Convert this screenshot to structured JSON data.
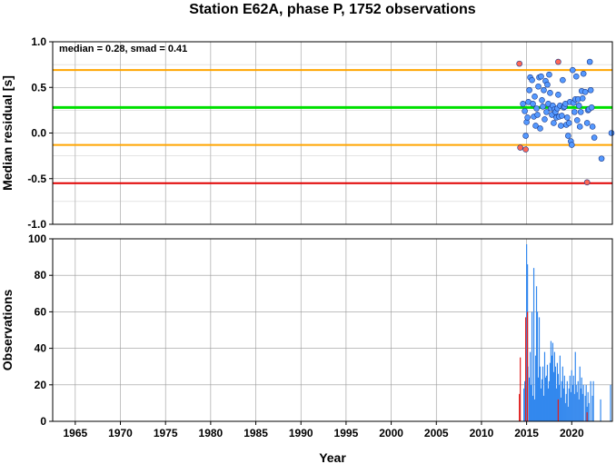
{
  "title": "Station E62A, phase P, 1752 observations",
  "stats_text": "median = 0.28, smad = 0.41",
  "chart_data": [
    {
      "type": "scatter",
      "ylabel": "Median residual [s]",
      "xlim": [
        1962.5,
        2024.5
      ],
      "ylim": [
        -1.0,
        1.0
      ],
      "yticks": [
        "1.0",
        "0.5",
        "0.0",
        "-0.5",
        "-1.0"
      ],
      "ytick_values": [
        1.0,
        0.5,
        0.0,
        -0.5,
        -1.0
      ],
      "grid": true,
      "hlines": [
        {
          "y": 0.69,
          "color": "#ffa500"
        },
        {
          "y": 0.28,
          "color": "#00e000"
        },
        {
          "y": -0.13,
          "color": "#ffa500"
        },
        {
          "y": -0.55,
          "color": "#e00000"
        }
      ],
      "series": [
        {
          "color": "#5599ff",
          "points": [
            [
              2014.6,
              0.32
            ],
            [
              2014.8,
              0.24
            ],
            [
              2014.9,
              -0.03
            ],
            [
              2015.0,
              0.12
            ],
            [
              2015.1,
              0.17
            ],
            [
              2015.2,
              0.34
            ],
            [
              2015.3,
              0.47
            ],
            [
              2015.4,
              0.61
            ],
            [
              2015.6,
              0.58
            ],
            [
              2015.7,
              0.32
            ],
            [
              2015.8,
              0.18
            ],
            [
              2015.9,
              0.4
            ],
            [
              2016.0,
              0.08
            ],
            [
              2016.1,
              0.27
            ],
            [
              2016.2,
              0.2
            ],
            [
              2016.3,
              0.51
            ],
            [
              2016.4,
              0.61
            ],
            [
              2016.5,
              0.05
            ],
            [
              2016.6,
              0.62
            ],
            [
              2016.7,
              0.36
            ],
            [
              2016.8,
              0.29
            ],
            [
              2016.9,
              0.47
            ],
            [
              2017.0,
              0.15
            ],
            [
              2017.1,
              0.57
            ],
            [
              2017.2,
              0.23
            ],
            [
              2017.3,
              0.53
            ],
            [
              2017.4,
              0.32
            ],
            [
              2017.5,
              0.64
            ],
            [
              2017.6,
              0.44
            ],
            [
              2017.7,
              0.27
            ],
            [
              2017.8,
              0.2
            ],
            [
              2017.9,
              0.3
            ],
            [
              2018.0,
              0.11
            ],
            [
              2018.1,
              0.26
            ],
            [
              2018.2,
              0.23
            ],
            [
              2018.3,
              0.17
            ],
            [
              2018.4,
              0.27
            ],
            [
              2018.5,
              0.42
            ],
            [
              2018.6,
              0.18
            ],
            [
              2018.7,
              0.3
            ],
            [
              2018.8,
              0.08
            ],
            [
              2018.9,
              0.19
            ],
            [
              2019.0,
              0.58
            ],
            [
              2019.1,
              0.28
            ],
            [
              2019.2,
              0.29
            ],
            [
              2019.3,
              0.32
            ],
            [
              2019.4,
              0.09
            ],
            [
              2019.5,
              0.17
            ],
            [
              2019.6,
              -0.03
            ],
            [
              2019.7,
              0.11
            ],
            [
              2019.8,
              0.34
            ],
            [
              2019.9,
              -0.09
            ],
            [
              2020.0,
              -0.13
            ],
            [
              2020.1,
              0.69
            ],
            [
              2020.2,
              0.33
            ],
            [
              2020.3,
              0.23
            ],
            [
              2020.4,
              0.37
            ],
            [
              2020.5,
              0.62
            ],
            [
              2020.6,
              0.14
            ],
            [
              2020.7,
              0.37
            ],
            [
              2020.8,
              0.3
            ],
            [
              2020.9,
              0.07
            ],
            [
              2021.0,
              0.23
            ],
            [
              2021.1,
              0.46
            ],
            [
              2021.2,
              0.38
            ],
            [
              2021.3,
              0.65
            ],
            [
              2021.5,
              0.45
            ],
            [
              2021.7,
              0.11
            ],
            [
              2021.8,
              0.25
            ],
            [
              2021.9,
              0.26
            ],
            [
              2022.0,
              0.78
            ],
            [
              2022.1,
              0.47
            ],
            [
              2022.2,
              0.28
            ],
            [
              2022.3,
              0.07
            ],
            [
              2022.5,
              -0.05
            ],
            [
              2023.3,
              -0.28
            ],
            [
              2024.4,
              0.0
            ]
          ]
        },
        {
          "color": "#ff6655",
          "points": [
            [
              2014.2,
              0.76
            ],
            [
              2014.3,
              -0.16
            ],
            [
              2014.9,
              -0.18
            ],
            [
              2018.5,
              0.78
            ],
            [
              2021.7,
              -0.54
            ]
          ]
        }
      ]
    },
    {
      "type": "bar",
      "ylabel": "Observations",
      "xlabel": "Year",
      "xlim": [
        1962.5,
        2024.5
      ],
      "ylim": [
        0,
        100
      ],
      "xticks": [
        "1965",
        "1970",
        "1975",
        "1980",
        "1985",
        "1990",
        "1995",
        "2000",
        "2005",
        "2010",
        "2015",
        "2020"
      ],
      "xtick_values": [
        1965,
        1970,
        1975,
        1980,
        1985,
        1990,
        1995,
        2000,
        2005,
        2010,
        2015,
        2020
      ],
      "yticks": [
        "0",
        "20",
        "40",
        "60",
        "80",
        "100"
      ],
      "ytick_values": [
        0,
        20,
        40,
        60,
        80,
        100
      ],
      "grid": true,
      "series": [
        {
          "color": "#3388ee",
          "bars": [
            [
              2014.7,
              18
            ],
            [
              2014.8,
              22
            ],
            [
              2015.0,
              97
            ],
            [
              2015.1,
              86
            ],
            [
              2015.15,
              30
            ],
            [
              2015.3,
              24
            ],
            [
              2015.4,
              38
            ],
            [
              2015.5,
              20
            ],
            [
              2015.6,
              60
            ],
            [
              2015.7,
              14
            ],
            [
              2015.8,
              84
            ],
            [
              2015.9,
              12
            ],
            [
              2016.0,
              36
            ],
            [
              2016.1,
              74
            ],
            [
              2016.2,
              60
            ],
            [
              2016.3,
              24
            ],
            [
              2016.4,
              57
            ],
            [
              2016.5,
              30
            ],
            [
              2016.6,
              18
            ],
            [
              2016.7,
              23
            ],
            [
              2016.8,
              30
            ],
            [
              2016.9,
              14
            ],
            [
              2017.0,
              38
            ],
            [
              2017.1,
              24
            ],
            [
              2017.2,
              25
            ],
            [
              2017.3,
              31
            ],
            [
              2017.4,
              18
            ],
            [
              2017.5,
              22
            ],
            [
              2017.6,
              32
            ],
            [
              2017.7,
              44
            ],
            [
              2017.8,
              36
            ],
            [
              2017.9,
              43
            ],
            [
              2018.0,
              27
            ],
            [
              2018.1,
              38
            ],
            [
              2018.2,
              30
            ],
            [
              2018.3,
              18
            ],
            [
              2018.4,
              32
            ],
            [
              2018.5,
              26
            ],
            [
              2018.6,
              20
            ],
            [
              2018.7,
              36
            ],
            [
              2018.8,
              13
            ],
            [
              2018.9,
              22
            ],
            [
              2019.0,
              30
            ],
            [
              2019.1,
              18
            ],
            [
              2019.2,
              25
            ],
            [
              2019.3,
              10
            ],
            [
              2019.4,
              15
            ],
            [
              2019.5,
              22
            ],
            [
              2019.6,
              8
            ],
            [
              2019.7,
              18
            ],
            [
              2019.8,
              25
            ],
            [
              2019.9,
              16
            ],
            [
              2020.0,
              28
            ],
            [
              2020.1,
              20
            ],
            [
              2020.2,
              25
            ],
            [
              2020.3,
              15
            ],
            [
              2020.4,
              38
            ],
            [
              2020.5,
              20
            ],
            [
              2020.6,
              16
            ],
            [
              2020.7,
              22
            ],
            [
              2020.8,
              12
            ],
            [
              2020.9,
              30
            ],
            [
              2021.0,
              18
            ],
            [
              2021.1,
              24
            ],
            [
              2021.2,
              15
            ],
            [
              2021.3,
              20
            ],
            [
              2021.5,
              14
            ],
            [
              2021.6,
              20
            ],
            [
              2021.7,
              8
            ],
            [
              2021.8,
              16
            ],
            [
              2021.9,
              10
            ],
            [
              2022.1,
              22
            ],
            [
              2022.3,
              14
            ],
            [
              2022.4,
              22
            ],
            [
              2023.2,
              12
            ],
            [
              2024.3,
              20
            ]
          ]
        },
        {
          "color": "#e02020",
          "bars": [
            [
              2014.2,
              15
            ],
            [
              2014.3,
              35
            ],
            [
              2014.9,
              57
            ],
            [
              2015.1,
              60
            ],
            [
              2018.5,
              12
            ],
            [
              2021.7,
              5
            ]
          ]
        }
      ]
    }
  ]
}
